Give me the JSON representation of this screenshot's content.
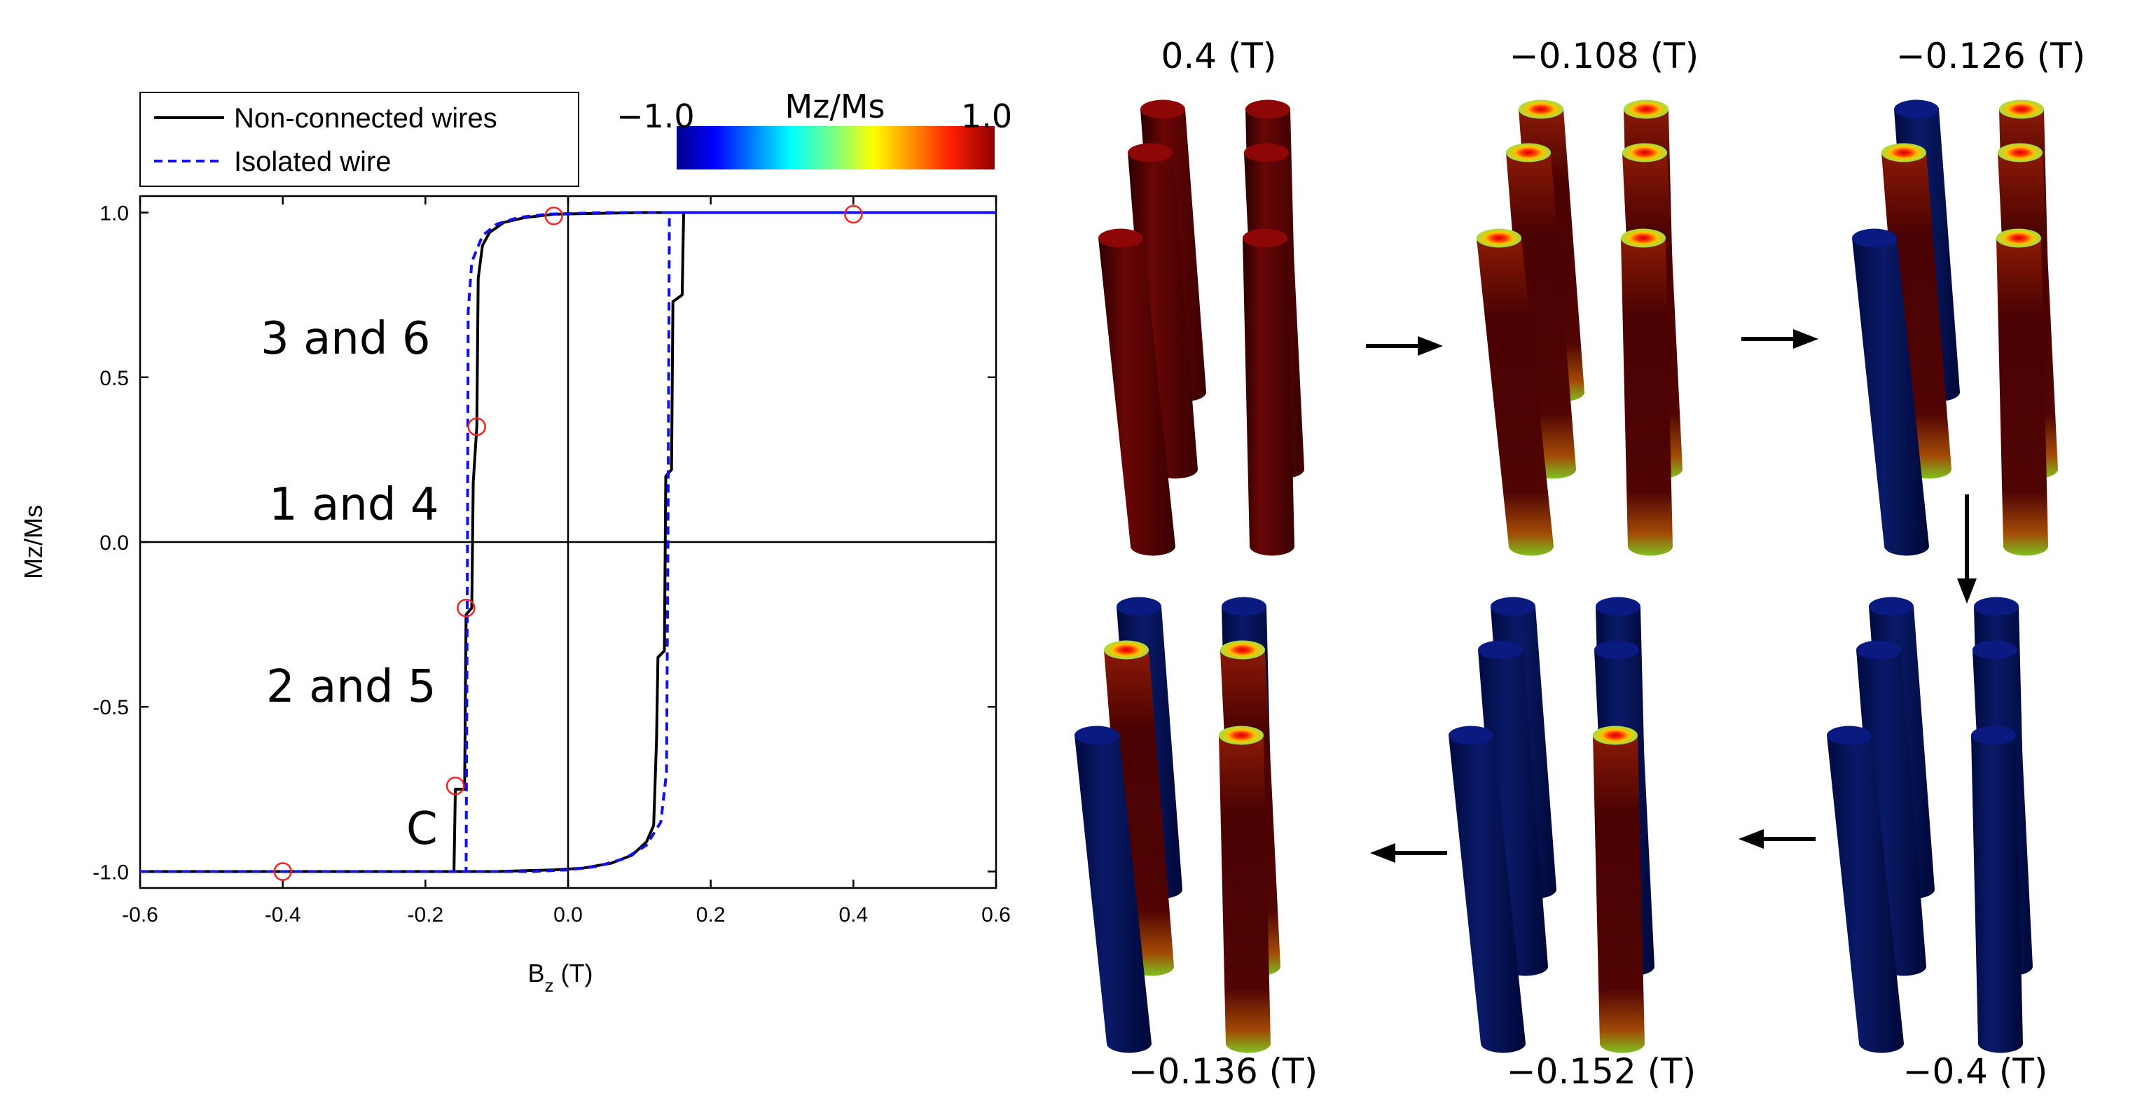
{
  "chart_data": {
    "type": "line",
    "xlabel_main": "B",
    "xlabel_sub": "z",
    "xlabel_unit": " (T)",
    "ylabel": "Mz/Ms",
    "xlim": [
      -0.6,
      0.6
    ],
    "ylim": [
      -1.05,
      1.05
    ],
    "xticks": [
      {
        "v": -0.6,
        "label": "-0.6"
      },
      {
        "v": -0.4,
        "label": "-0.4"
      },
      {
        "v": -0.2,
        "label": "-0.2"
      },
      {
        "v": 0.0,
        "label": "0.0"
      },
      {
        "v": 0.2,
        "label": "0.2"
      },
      {
        "v": 0.4,
        "label": "0.4"
      },
      {
        "v": 0.6,
        "label": "0.6"
      }
    ],
    "yticks": [
      {
        "v": -1.0,
        "label": "-1.0"
      },
      {
        "v": -0.5,
        "label": "-0.5"
      },
      {
        "v": 0.0,
        "label": "0.0"
      },
      {
        "v": 0.5,
        "label": "0.5"
      },
      {
        "v": 1.0,
        "label": "1.0"
      }
    ],
    "series": [
      {
        "name": "Non-connected wires",
        "color": "#000000",
        "style": "solid",
        "branches": [
          [
            [
              -0.6,
              -1.0
            ],
            [
              -0.16,
              -1.0
            ],
            [
              -0.158,
              -0.75
            ],
            [
              -0.145,
              -0.75
            ],
            [
              -0.143,
              -0.22
            ],
            [
              -0.135,
              -0.2
            ],
            [
              -0.133,
              0.18
            ],
            [
              -0.128,
              0.35
            ],
            [
              -0.126,
              0.8
            ],
            [
              -0.12,
              0.9
            ],
            [
              -0.11,
              0.94
            ],
            [
              -0.09,
              0.97
            ],
            [
              -0.06,
              0.985
            ],
            [
              -0.02,
              0.995
            ],
            [
              0.1,
              1.0
            ],
            [
              0.6,
              1.0
            ]
          ],
          [
            [
              -0.6,
              -1.0
            ],
            [
              -0.1,
              -1.0
            ],
            [
              -0.02,
              -0.995
            ],
            [
              0.02,
              -0.99
            ],
            [
              0.06,
              -0.975
            ],
            [
              0.09,
              -0.95
            ],
            [
              0.11,
              -0.91
            ],
            [
              0.12,
              -0.86
            ],
            [
              0.124,
              -0.6
            ],
            [
              0.126,
              -0.35
            ],
            [
              0.135,
              -0.33
            ],
            [
              0.137,
              0.2
            ],
            [
              0.145,
              0.22
            ],
            [
              0.147,
              0.73
            ],
            [
              0.16,
              0.75
            ],
            [
              0.162,
              1.0
            ],
            [
              0.6,
              1.0
            ]
          ]
        ]
      },
      {
        "name": "Isolated wire",
        "color": "#1010ee",
        "style": "dashed",
        "branches": [
          [
            [
              -0.6,
              -1.0
            ],
            [
              -0.143,
              -1.0
            ],
            [
              -0.141,
              0.0
            ],
            [
              -0.14,
              0.7
            ],
            [
              -0.135,
              0.85
            ],
            [
              -0.12,
              0.93
            ],
            [
              -0.1,
              0.965
            ],
            [
              -0.07,
              0.985
            ],
            [
              -0.03,
              0.995
            ],
            [
              0.05,
              1.0
            ],
            [
              0.6,
              1.0
            ]
          ],
          [
            [
              -0.6,
              -1.0
            ],
            [
              -0.05,
              -1.0
            ],
            [
              0.0,
              -0.995
            ],
            [
              0.04,
              -0.985
            ],
            [
              0.08,
              -0.96
            ],
            [
              0.11,
              -0.92
            ],
            [
              0.13,
              -0.85
            ],
            [
              0.138,
              -0.7
            ],
            [
              0.14,
              0.0
            ],
            [
              0.142,
              1.0
            ],
            [
              0.6,
              1.0
            ]
          ]
        ]
      }
    ],
    "markers": [
      {
        "x": -0.4,
        "y": -1.0
      },
      {
        "x": -0.158,
        "y": -0.74
      },
      {
        "x": -0.143,
        "y": -0.2
      },
      {
        "x": -0.128,
        "y": 0.35
      },
      {
        "x": -0.02,
        "y": 0.99
      },
      {
        "x": 0.4,
        "y": 0.995
      }
    ],
    "marker_color": "#ff2020",
    "annotations": {
      "a36": "3 and 6",
      "a14": "1 and 4",
      "a25": "2 and 5",
      "c": "C"
    },
    "legend": [
      "Non-connected wires",
      "Isolated wire"
    ],
    "colorbar": {
      "label": "Mz/Ms",
      "min_label": "−1.0",
      "max_label": "1.0",
      "min": -1.0,
      "max": 1.0
    }
  },
  "panels": {
    "arrow_color": "#000000",
    "steps": [
      {
        "field": "0.4 (T)",
        "mz": [
          1,
          1,
          1,
          1,
          1,
          1
        ],
        "tipped": [
          false,
          false,
          false,
          false,
          false,
          false
        ]
      },
      {
        "field": "−0.108 (T)",
        "mz": [
          1,
          1,
          1,
          1,
          1,
          1
        ],
        "tipped": [
          true,
          true,
          true,
          true,
          true,
          true
        ]
      },
      {
        "field": "−0.126 (T)",
        "mz": [
          1,
          -1,
          1,
          1,
          -1,
          1
        ],
        "tipped": [
          true,
          false,
          true,
          true,
          false,
          true
        ]
      },
      {
        "field": "−0.4 (T)",
        "mz": [
          -1,
          -1,
          -1,
          -1,
          -1,
          -1
        ],
        "tipped": [
          false,
          false,
          false,
          false,
          false,
          false
        ]
      },
      {
        "field": "−0.152 (T)",
        "mz": [
          -1,
          -1,
          -1,
          -1,
          -1,
          1
        ],
        "tipped": [
          false,
          false,
          false,
          false,
          false,
          true
        ]
      },
      {
        "field": "−0.136 (T)",
        "mz": [
          1,
          -1,
          -1,
          1,
          -1,
          1
        ],
        "tipped": [
          true,
          false,
          false,
          true,
          false,
          true
        ]
      }
    ]
  }
}
